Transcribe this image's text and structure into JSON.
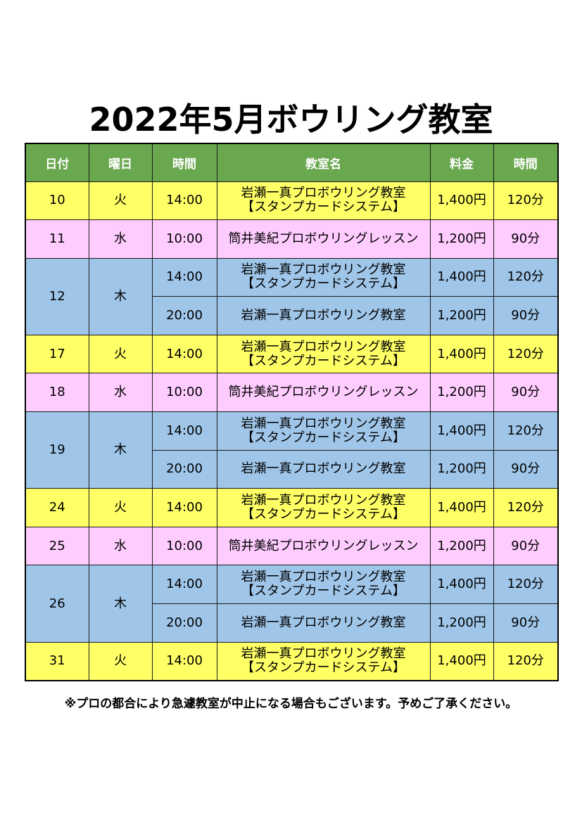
{
  "title": "2022年5月ボウリング教室",
  "headers": [
    "日付",
    "曜日",
    "時間",
    "教室名",
    "料金",
    "時間"
  ],
  "rows": [
    {
      "color": "#ffff66",
      "cls": "yellow",
      "date": "10",
      "day": "火",
      "sessions": [
        {
          "time": "14:00",
          "lesson": [
            "岩瀬一真プロボウリング教室",
            "【スタンプカードシステム】"
          ],
          "price": "1,400円",
          "duration": "120分"
        }
      ]
    },
    {
      "color": "#ffccff",
      "cls": "pink",
      "date": "11",
      "day": "水",
      "sessions": [
        {
          "time": "10:00",
          "lesson": [
            "筒井美紀プロボウリングレッスン"
          ],
          "price": "1,200円",
          "duration": "90分"
        }
      ]
    },
    {
      "color": "#9fc5e8",
      "cls": "blue",
      "date": "12",
      "day": "木",
      "sessions": [
        {
          "time": "14:00",
          "lesson": [
            "岩瀬一真プロボウリング教室",
            "【スタンプカードシステム】"
          ],
          "price": "1,400円",
          "duration": "120分"
        },
        {
          "time": "20:00",
          "lesson": [
            "岩瀬一真プロボウリング教室"
          ],
          "price": "1,200円",
          "duration": "90分"
        }
      ]
    },
    {
      "color": "#ffff66",
      "cls": "yellow",
      "date": "17",
      "day": "火",
      "sessions": [
        {
          "time": "14:00",
          "lesson": [
            "岩瀬一真プロボウリング教室",
            "【スタンプカードシステム】"
          ],
          "price": "1,400円",
          "duration": "120分"
        }
      ]
    },
    {
      "color": "#ffccff",
      "cls": "pink",
      "date": "18",
      "day": "水",
      "sessions": [
        {
          "time": "10:00",
          "lesson": [
            "筒井美紀プロボウリングレッスン"
          ],
          "price": "1,200円",
          "duration": "90分"
        }
      ]
    },
    {
      "color": "#9fc5e8",
      "cls": "blue",
      "date": "19",
      "day": "木",
      "sessions": [
        {
          "time": "14:00",
          "lesson": [
            "岩瀬一真プロボウリング教室",
            "【スタンプカードシステム】"
          ],
          "price": "1,400円",
          "duration": "120分"
        },
        {
          "time": "20:00",
          "lesson": [
            "岩瀬一真プロボウリング教室"
          ],
          "price": "1,200円",
          "duration": "90分"
        }
      ]
    },
    {
      "color": "#ffff66",
      "cls": "yellow",
      "date": "24",
      "day": "火",
      "sessions": [
        {
          "time": "14:00",
          "lesson": [
            "岩瀬一真プロボウリング教室",
            "【スタンプカードシステム】"
          ],
          "price": "1,400円",
          "duration": "120分"
        }
      ]
    },
    {
      "color": "#ffccff",
      "cls": "pink",
      "date": "25",
      "day": "水",
      "sessions": [
        {
          "time": "10:00",
          "lesson": [
            "筒井美紀プロボウリングレッスン"
          ],
          "price": "1,200円",
          "duration": "90分"
        }
      ]
    },
    {
      "color": "#9fc5e8",
      "cls": "blue",
      "date": "26",
      "day": "木",
      "sessions": [
        {
          "time": "14:00",
          "lesson": [
            "岩瀬一真プロボウリング教室",
            "【スタンプカードシステム】"
          ],
          "price": "1,400円",
          "duration": "120分"
        },
        {
          "time": "20:00",
          "lesson": [
            "岩瀬一真プロボウリング教室"
          ],
          "price": "1,200円",
          "duration": "90分"
        }
      ]
    },
    {
      "color": "#ffff66",
      "cls": "yellow",
      "date": "31",
      "day": "火",
      "sessions": [
        {
          "time": "14:00",
          "lesson": [
            "岩瀬一真プロボウリング教室",
            "【スタンプカードシステム】"
          ],
          "price": "1,400円",
          "duration": "120分"
        }
      ]
    }
  ],
  "header_color": "#6aa84f",
  "note": "※プロの都合により急遽教室が中止になる場合もございます。予めご了承ください。"
}
